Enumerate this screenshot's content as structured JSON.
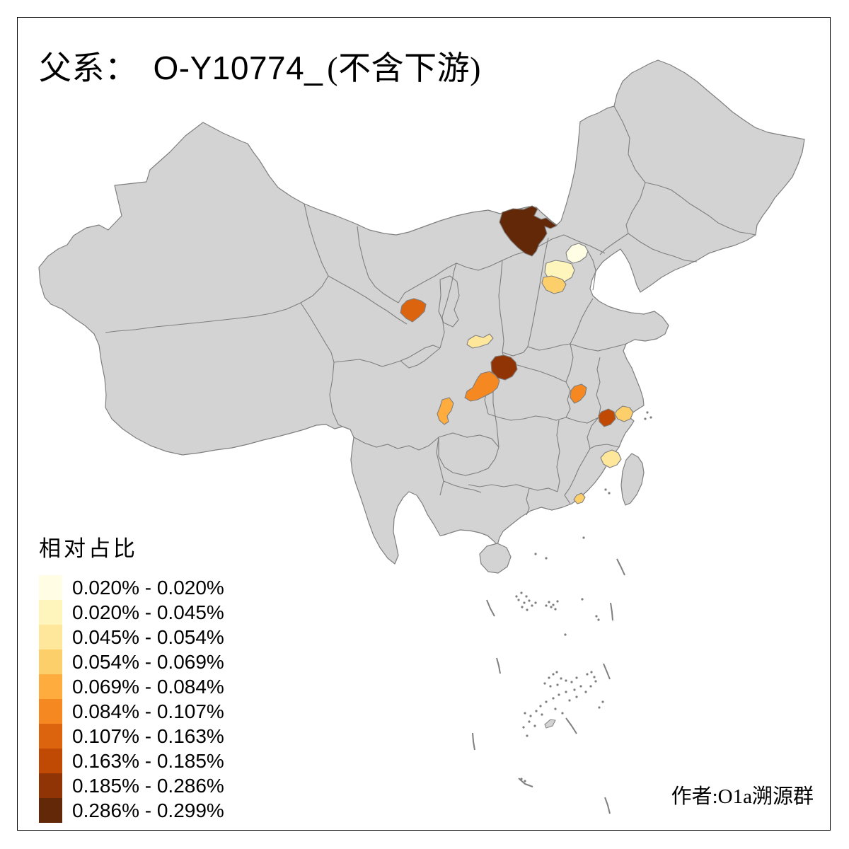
{
  "title": {
    "prefix": "父系：",
    "haplogroup": "O-Y10774_",
    "suffix": "(不含下游)"
  },
  "legend": {
    "title": "相对占比",
    "classes": [
      {
        "label": "0.020% - 0.020%",
        "color": "#FFFDE3"
      },
      {
        "label": "0.020% - 0.045%",
        "color": "#FDF5BC"
      },
      {
        "label": "0.045% - 0.054%",
        "color": "#FEE79A"
      },
      {
        "label": "0.054% - 0.069%",
        "color": "#FDCF6B"
      },
      {
        "label": "0.069% - 0.084%",
        "color": "#FDAC3D"
      },
      {
        "label": "0.084% - 0.107%",
        "color": "#F58821"
      },
      {
        "label": "0.107% - 0.163%",
        "color": "#DC640F"
      },
      {
        "label": "0.163% - 0.185%",
        "color": "#C04A04"
      },
      {
        "label": "0.185% - 0.286%",
        "color": "#913405"
      },
      {
        "label": "0.286% - 0.299%",
        "color": "#622808"
      }
    ]
  },
  "credit": "作者:O1a溯源群",
  "map": {
    "land_color": "#D3D3D3",
    "border_color": "#7F7F7F",
    "background_color": "#FFFFFF",
    "regions": [
      {
        "id": "region-1",
        "class_index": 9
      },
      {
        "id": "region-2",
        "class_index": 0
      },
      {
        "id": "region-3",
        "class_index": 1
      },
      {
        "id": "region-4",
        "class_index": 3
      },
      {
        "id": "region-5",
        "class_index": 6
      },
      {
        "id": "region-6",
        "class_index": 2
      },
      {
        "id": "region-7",
        "class_index": 8
      },
      {
        "id": "region-8",
        "class_index": 5
      },
      {
        "id": "region-9",
        "class_index": 4
      },
      {
        "id": "region-10",
        "class_index": 5
      },
      {
        "id": "region-11",
        "class_index": 7
      },
      {
        "id": "region-12",
        "class_index": 3
      },
      {
        "id": "region-13",
        "class_index": 2
      },
      {
        "id": "region-14",
        "class_index": 3
      }
    ]
  }
}
